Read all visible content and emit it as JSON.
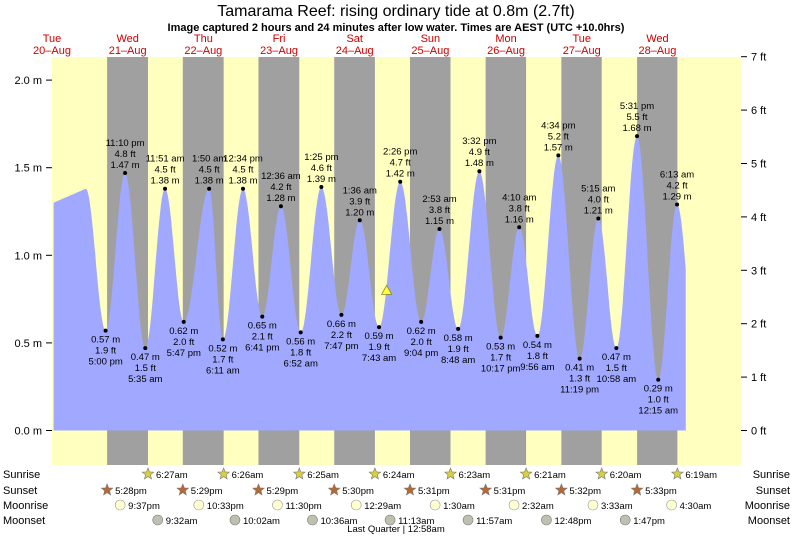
{
  "title": "Tamarama Reef: rising  ordinary tide at 0.8m (2.7ft)",
  "subtitle": "Image captured 2 hours and 24 minutes after low water. Times are AEST (UTC +10.0hrs)",
  "moon_phase_label": "Last Quarter | 12:58am",
  "colors": {
    "day": "#ffffc0",
    "night": "#a0a0a0",
    "tide": "#a0a8ff",
    "day_label": "#cc0000",
    "sun_star": "#d8d040",
    "sunset_star": "#b86830",
    "moon_circle": "#ffffd0",
    "moonset_circle": "#c0c0b0"
  },
  "chart_data": {
    "type": "area",
    "x_unit": "hours from 20-Aug 00:00 (AEST)",
    "xlim": [
      0,
      218.5
    ],
    "ylim": [
      -0.3,
      2.1
    ],
    "y_left_label": "m",
    "y_right_label": "ft",
    "y_left_ticks": [
      "0.0 m",
      "0.5 m",
      "1.0 m",
      "1.5 m",
      "2.0 m"
    ],
    "y_left_tick_values": [
      0,
      0.5,
      1.0,
      1.5,
      2.0
    ],
    "y_right_ticks": [
      "0 ft",
      "1 ft",
      "2 ft",
      "3 ft",
      "4 ft",
      "5 ft",
      "6 ft",
      "7 ft"
    ],
    "days": [
      {
        "weekday": "Tue",
        "date": "20–Aug"
      },
      {
        "weekday": "Wed",
        "date": "21–Aug"
      },
      {
        "weekday": "Thu",
        "date": "22–Aug"
      },
      {
        "weekday": "Fri",
        "date": "23–Aug"
      },
      {
        "weekday": "Sat",
        "date": "24–Aug"
      },
      {
        "weekday": "Sun",
        "date": "25–Aug"
      },
      {
        "weekday": "Mon",
        "date": "26–Aug"
      },
      {
        "weekday": "Tue",
        "date": "27–Aug"
      },
      {
        "weekday": "Wed",
        "date": "28–Aug"
      }
    ],
    "tides": [
      {
        "t": 17.0,
        "m": 0.57,
        "time": "5:00 pm",
        "ft": "1.9 ft",
        "mlabel": "0.57 m",
        "type": "low"
      },
      {
        "t": 23.17,
        "m": 1.47,
        "time": "11:10 pm",
        "ft": "4.8 ft",
        "mlabel": "1.47 m",
        "type": "high"
      },
      {
        "t": 29.58,
        "m": 0.47,
        "time": "5:35 am",
        "ft": "1.5 ft",
        "mlabel": "0.47 m",
        "type": "low"
      },
      {
        "t": 35.85,
        "m": 1.38,
        "time": "11:51 am",
        "ft": "4.5 ft",
        "mlabel": "1.38 m",
        "type": "high"
      },
      {
        "t": 41.78,
        "m": 0.62,
        "time": "5:47 pm",
        "ft": "2.0 ft",
        "mlabel": "0.62 m",
        "type": "low"
      },
      {
        "t": 49.83,
        "m": 1.38,
        "time": "1:50 am",
        "ft": "4.5 ft",
        "mlabel": "1.38 m",
        "type": "high"
      },
      {
        "t": 54.18,
        "m": 0.52,
        "time": "6:11 am",
        "ft": "1.7 ft",
        "mlabel": "0.52 m",
        "type": "low"
      },
      {
        "t": 60.57,
        "m": 1.38,
        "time": "12:34 pm",
        "ft": "4.5 ft",
        "mlabel": "1.38 m",
        "type": "high"
      },
      {
        "t": 66.68,
        "m": 0.65,
        "time": "6:41 pm",
        "ft": "2.1 ft",
        "mlabel": "0.65 m",
        "type": "low"
      },
      {
        "t": 72.6,
        "m": 1.28,
        "time": "12:36 am",
        "ft": "4.2 ft",
        "mlabel": "1.28 m",
        "type": "high"
      },
      {
        "t": 78.87,
        "m": 0.56,
        "time": "6:52 am",
        "ft": "1.8 ft",
        "mlabel": "0.56 m",
        "type": "low"
      },
      {
        "t": 85.42,
        "m": 1.39,
        "time": "1:25 pm",
        "ft": "4.6 ft",
        "mlabel": "1.39 m",
        "type": "high"
      },
      {
        "t": 91.78,
        "m": 0.66,
        "time": "7:47 pm",
        "ft": "2.2 ft",
        "mlabel": "0.66 m",
        "type": "low"
      },
      {
        "t": 97.6,
        "m": 1.2,
        "time": "1:36 am",
        "ft": "3.9 ft",
        "mlabel": "1.20 m",
        "type": "high"
      },
      {
        "t": 103.72,
        "m": 0.59,
        "time": "7:43 am",
        "ft": "1.9 ft",
        "mlabel": "0.59 m",
        "type": "low"
      },
      {
        "t": 110.43,
        "m": 1.42,
        "time": "2:26 pm",
        "ft": "4.7 ft",
        "mlabel": "1.42 m",
        "type": "high"
      },
      {
        "t": 117.07,
        "m": 0.62,
        "time": "9:04 pm",
        "ft": "2.0 ft",
        "mlabel": "0.62 m",
        "type": "low"
      },
      {
        "t": 122.88,
        "m": 1.15,
        "time": "2:53 am",
        "ft": "3.8 ft",
        "mlabel": "1.15 m",
        "type": "high"
      },
      {
        "t": 128.8,
        "m": 0.58,
        "time": "8:48 am",
        "ft": "1.9 ft",
        "mlabel": "0.58 m",
        "type": "low"
      },
      {
        "t": 135.53,
        "m": 1.48,
        "time": "3:32 pm",
        "ft": "4.9 ft",
        "mlabel": "1.48 m",
        "type": "high"
      },
      {
        "t": 142.28,
        "m": 0.53,
        "time": "10:17 pm",
        "ft": "1.7 ft",
        "mlabel": "0.53 m",
        "type": "low"
      },
      {
        "t": 148.17,
        "m": 1.16,
        "time": "4:10 am",
        "ft": "3.8 ft",
        "mlabel": "1.16 m",
        "type": "high"
      },
      {
        "t": 153.93,
        "m": 0.54,
        "time": "9:56 am",
        "ft": "1.8 ft",
        "mlabel": "0.54 m",
        "type": "low"
      },
      {
        "t": 160.57,
        "m": 1.57,
        "time": "4:34 pm",
        "ft": "5.2 ft",
        "mlabel": "1.57 m",
        "type": "high"
      },
      {
        "t": 167.32,
        "m": 0.41,
        "time": "11:19 pm",
        "ft": "1.3 ft",
        "mlabel": "0.41 m",
        "type": "low"
      },
      {
        "t": 173.25,
        "m": 1.21,
        "time": "5:15 am",
        "ft": "4.0 ft",
        "mlabel": "1.21 m",
        "type": "high"
      },
      {
        "t": 178.97,
        "m": 0.47,
        "time": "10:58 am",
        "ft": "1.5 ft",
        "mlabel": "0.47 m",
        "type": "low"
      },
      {
        "t": 185.52,
        "m": 1.68,
        "time": "5:31 pm",
        "ft": "5.5 ft",
        "mlabel": "1.68 m",
        "type": "high"
      },
      {
        "t": 192.25,
        "m": 0.29,
        "time": "12:15 am",
        "ft": "1.0 ft",
        "mlabel": "0.29 m",
        "type": "low"
      },
      {
        "t": 198.22,
        "m": 1.29,
        "time": "6:13 am",
        "ft": "4.2 ft",
        "mlabel": "1.29 m",
        "type": "high"
      }
    ],
    "current": {
      "t": 106.13,
      "m": 0.8,
      "label": "rising ordinary tide at 0.8m (2.7ft)"
    },
    "sunrise": [
      {
        "t": 30.45,
        "time": "6:27am"
      },
      {
        "t": 54.43,
        "time": "6:26am"
      },
      {
        "t": 78.42,
        "time": "6:25am"
      },
      {
        "t": 102.4,
        "time": "6:24am"
      },
      {
        "t": 126.38,
        "time": "6:23am"
      },
      {
        "t": 150.35,
        "time": "6:21am"
      },
      {
        "t": 174.33,
        "time": "6:20am"
      },
      {
        "t": 198.32,
        "time": "6:19am"
      }
    ],
    "sunset": [
      {
        "t": 17.47,
        "time": "5:28pm"
      },
      {
        "t": 41.48,
        "time": "5:29pm"
      },
      {
        "t": 65.48,
        "time": "5:29pm"
      },
      {
        "t": 89.5,
        "time": "5:30pm"
      },
      {
        "t": 113.52,
        "time": "5:31pm"
      },
      {
        "t": 137.52,
        "time": "5:31pm"
      },
      {
        "t": 161.53,
        "time": "5:32pm"
      },
      {
        "t": 185.55,
        "time": "5:33pm"
      }
    ],
    "moonrise": [
      {
        "t": 21.62,
        "time": "9:37pm"
      },
      {
        "t": 46.55,
        "time": "10:33pm"
      },
      {
        "t": 71.5,
        "time": "11:30pm"
      },
      {
        "t": 96.48,
        "time": "12:29am"
      },
      {
        "t": 121.5,
        "time": "1:30am"
      },
      {
        "t": 146.53,
        "time": "2:32am"
      },
      {
        "t": 171.55,
        "time": "3:33am"
      },
      {
        "t": 196.5,
        "time": "4:30am"
      }
    ],
    "moonset": [
      {
        "t": 33.53,
        "time": "9:32am"
      },
      {
        "t": 58.03,
        "time": "10:02am"
      },
      {
        "t": 82.6,
        "time": "10:36am"
      },
      {
        "t": 107.22,
        "time": "11:13am"
      },
      {
        "t": 131.95,
        "time": "11:57am"
      },
      {
        "t": 156.8,
        "time": "12:48pm"
      },
      {
        "t": 181.78,
        "time": "1:47pm"
      }
    ],
    "row_labels": [
      "Sunrise",
      "Sunset",
      "Moonrise",
      "Moonset"
    ]
  }
}
